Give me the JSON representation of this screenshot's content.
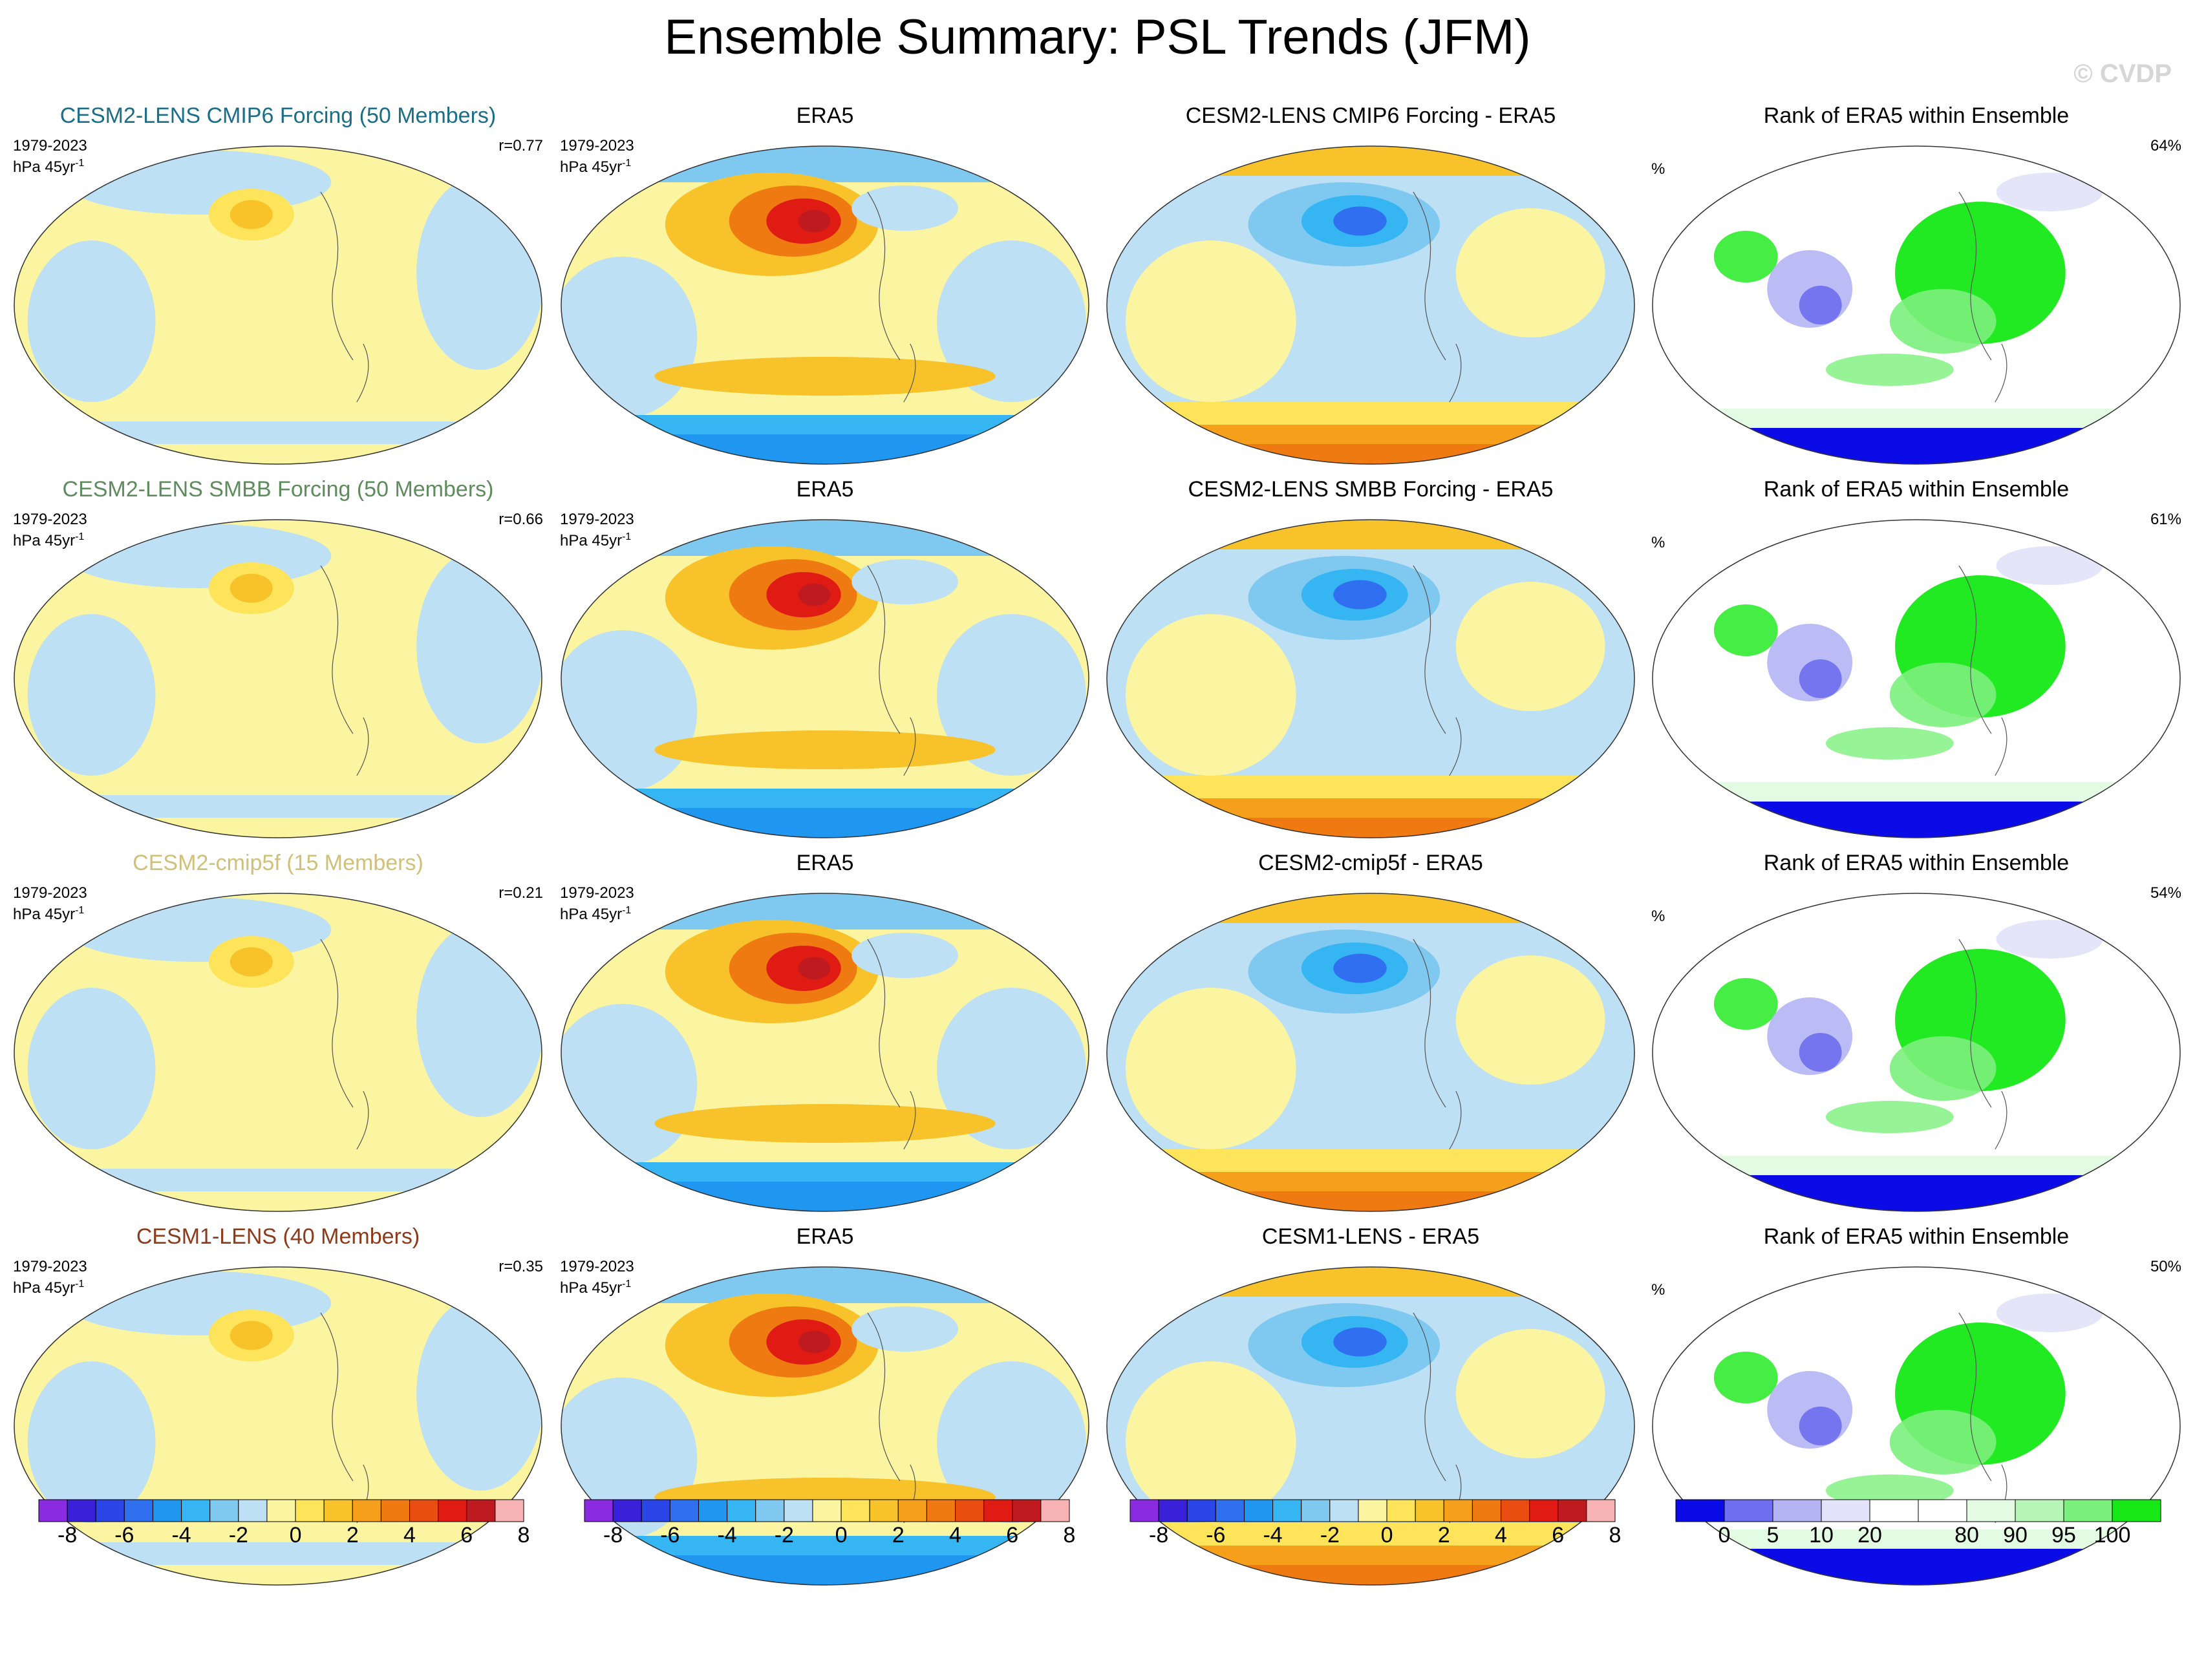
{
  "title": "Ensemble Summary: PSL Trends (JFM)",
  "watermark": "© CVDP",
  "rows": [
    {
      "ensemble": {
        "title": "CESM2-LENS CMIP6 Forcing (50 Members)",
        "title_color": "#1b6e88",
        "period": "1979-2023",
        "units": "hPa 45yr",
        "units_sup": "-1",
        "corr": "r=0.77"
      },
      "obs": {
        "title": "ERA5",
        "period": "1979-2023",
        "units": "hPa 45yr",
        "units_sup": "-1"
      },
      "diff": {
        "title": "CESM2-LENS CMIP6 Forcing - ERA5"
      },
      "rank": {
        "title": "Rank of ERA5 within Ensemble",
        "percent_symbol": "%",
        "percent": "64%"
      }
    },
    {
      "ensemble": {
        "title": "CESM2-LENS SMBB Forcing (50 Members)",
        "title_color": "#5e8c5e",
        "period": "1979-2023",
        "units": "hPa 45yr",
        "units_sup": "-1",
        "corr": "r=0.66"
      },
      "obs": {
        "title": "ERA5",
        "period": "1979-2023",
        "units": "hPa 45yr",
        "units_sup": "-1"
      },
      "diff": {
        "title": "CESM2-LENS SMBB Forcing - ERA5"
      },
      "rank": {
        "title": "Rank of ERA5 within Ensemble",
        "percent_symbol": "%",
        "percent": "61%"
      }
    },
    {
      "ensemble": {
        "title": "CESM2-cmip5f (15 Members)",
        "title_color": "#cfc07a",
        "period": "1979-2023",
        "units": "hPa 45yr",
        "units_sup": "-1",
        "corr": "r=0.21"
      },
      "obs": {
        "title": "ERA5",
        "period": "1979-2023",
        "units": "hPa 45yr",
        "units_sup": "-1"
      },
      "diff": {
        "title": "CESM2-cmip5f - ERA5"
      },
      "rank": {
        "title": "Rank of ERA5 within Ensemble",
        "percent_symbol": "%",
        "percent": "54%"
      }
    },
    {
      "ensemble": {
        "title": "CESM1-LENS (40 Members)",
        "title_color": "#8b3a1a",
        "period": "1979-2023",
        "units": "hPa 45yr",
        "units_sup": "-1",
        "corr": "r=0.35"
      },
      "obs": {
        "title": "ERA5",
        "period": "1979-2023",
        "units": "hPa 45yr",
        "units_sup": "-1"
      },
      "diff": {
        "title": "CESM1-LENS - ERA5"
      },
      "rank": {
        "title": "Rank of ERA5 within Ensemble",
        "percent_symbol": "%",
        "percent": "50%"
      }
    }
  ],
  "colorbars": {
    "trend": {
      "colors": [
        "#8a2be2",
        "#3b20d9",
        "#2a45e8",
        "#2f6ff0",
        "#1f96f0",
        "#35b5f2",
        "#7fc8ef",
        "#bde0f4",
        "#fbf4a0",
        "#fde45a",
        "#f7c22a",
        "#f59f1a",
        "#f07a12",
        "#ea4d10",
        "#e01b14",
        "#bf1a1f",
        "#f7b3b3"
      ],
      "labels": [
        "-8",
        "-6",
        "-4",
        "-2",
        "0",
        "2",
        "4",
        "6",
        "8"
      ]
    },
    "rank": {
      "colors": [
        "#0b0be8",
        "#6e6ef0",
        "#b4b4f5",
        "#e2e2fa",
        "#ffffff",
        "#ffffff",
        "#e2fbe2",
        "#b5f5b5",
        "#7cf07c",
        "#16e916"
      ],
      "labels": [
        "0",
        "5",
        "10",
        "20",
        "80",
        "90",
        "95",
        "100"
      ]
    }
  }
}
